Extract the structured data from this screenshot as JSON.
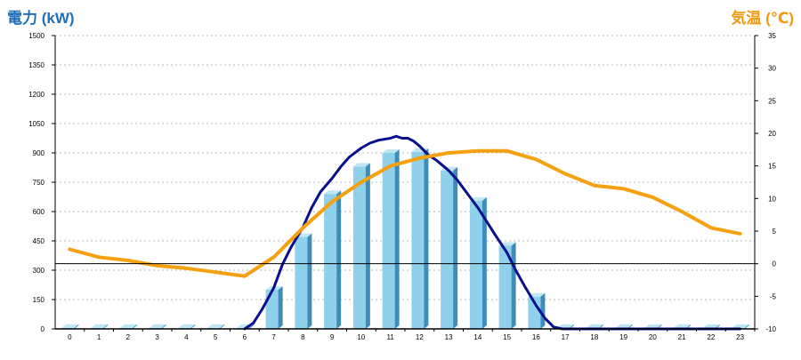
{
  "chart_data": {
    "type": "bar",
    "left_axis_title": "電力 (kW)",
    "right_axis_title": "気温 (℃)",
    "categories": [
      "0",
      "1",
      "2",
      "3",
      "4",
      "5",
      "6",
      "7",
      "8",
      "9",
      "10",
      "11",
      "12",
      "13",
      "14",
      "15",
      "16",
      "17",
      "18",
      "19",
      "20",
      "21",
      "22",
      "23"
    ],
    "left_ticks": [
      "0",
      "150",
      "300",
      "450",
      "600",
      "750",
      "900",
      "1050",
      "1200",
      "1350",
      "1500"
    ],
    "right_ticks": [
      "-10",
      "-5",
      "0",
      "5",
      "10",
      "15",
      "20",
      "25",
      "30",
      "35"
    ],
    "ylim_left": [
      0,
      1500
    ],
    "ylim_right": [
      -10,
      35
    ],
    "grid": true,
    "colors": {
      "bar_front": "#8fd0ea",
      "bar_side": "#3e8db9",
      "bar_top": "#bfe6f5",
      "power_line": "#0a0f8f",
      "temperature_line": "#f5a00f",
      "grid": "#b8b8b8",
      "axis": "#000000"
    },
    "series": [
      {
        "kind": "bar",
        "axis": "left",
        "values": [
          5,
          5,
          5,
          5,
          5,
          5,
          5,
          200,
          470,
          690,
          830,
          900,
          905,
          810,
          655,
          425,
          165,
          5,
          5,
          5,
          5,
          5,
          5,
          5
        ]
      },
      {
        "kind": "line",
        "axis": "left",
        "x": [
          6.0,
          6.3,
          6.6,
          7.0,
          7.3,
          7.6,
          8.0,
          8.3,
          8.6,
          9.0,
          9.3,
          9.6,
          10.0,
          10.3,
          10.6,
          11.0,
          11.2,
          11.4,
          11.6,
          11.8,
          12.0,
          12.3,
          12.6,
          13.0,
          13.3,
          13.6,
          14.0,
          14.3,
          14.6,
          15.0,
          15.3,
          15.6,
          16.0,
          16.3,
          16.6,
          16.9,
          17.0,
          17.5,
          18,
          19,
          20,
          21,
          22,
          23
        ],
        "values": [
          0,
          30,
          100,
          210,
          330,
          420,
          520,
          620,
          700,
          770,
          830,
          880,
          925,
          950,
          965,
          975,
          985,
          975,
          975,
          960,
          935,
          890,
          860,
          810,
          760,
          700,
          620,
          550,
          480,
          390,
          300,
          220,
          120,
          55,
          10,
          0,
          0,
          0,
          0,
          0,
          0,
          0,
          0,
          0
        ]
      },
      {
        "kind": "line",
        "axis": "right",
        "x": [
          0,
          1,
          2,
          3,
          4,
          5,
          6,
          7,
          8,
          9,
          10,
          11,
          12,
          13,
          14,
          15,
          16,
          17,
          18,
          19,
          20,
          21,
          22,
          23
        ],
        "values": [
          2.2,
          1.0,
          0.5,
          -0.3,
          -0.7,
          -1.3,
          -1.9,
          1.0,
          5.5,
          9.5,
          12.5,
          15.0,
          16.2,
          17.0,
          17.3,
          17.3,
          16.0,
          13.8,
          12.0,
          11.5,
          10.2,
          8.0,
          5.5,
          4.6
        ]
      }
    ]
  }
}
